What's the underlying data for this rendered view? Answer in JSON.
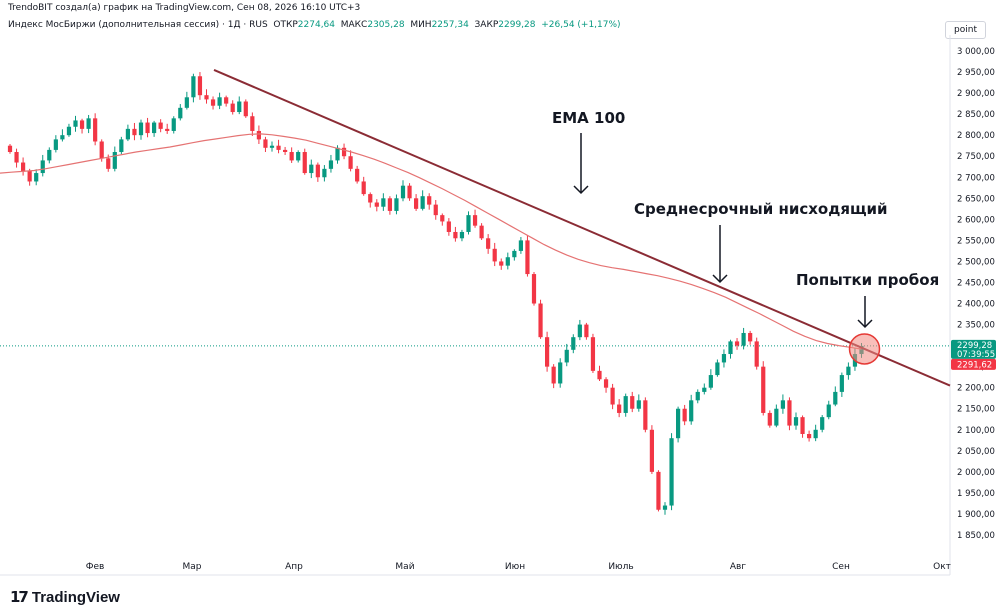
{
  "header": {
    "created_by": "TrendoBIT создал(а) график на TradingView.com, Сен 08, 2026 16:10 UTC+3",
    "symbol": "Индекс МосБиржи (дополнительная сессия) · 1Д · RUS",
    "open_label": "ОТКР",
    "open_value": "2274,64",
    "high_label": "МАКС",
    "high_value": "2305,28",
    "low_label": "МИН",
    "low_value": "2257,34",
    "close_label": "ЗАКР",
    "close_value": "2299,28",
    "change": "+26,54 (+1,17%)"
  },
  "scale_unit_button": "point",
  "price_badges": {
    "last_price": "2299,28",
    "countdown": "07:39:55",
    "ema_value": "2291,62"
  },
  "brand": {
    "logo": "17",
    "name": "TradingView"
  },
  "colors": {
    "up": "#089981",
    "down": "#f23645",
    "ema": "#e57373",
    "trendline": "#8b2c35",
    "highlight": "#f28b82"
  },
  "chart_data": {
    "type": "candlestick",
    "y_axis_ticks": [
      1850,
      1900,
      1950,
      2000,
      2050,
      2100,
      2150,
      2200,
      2250,
      2300,
      2350,
      2400,
      2450,
      2500,
      2550,
      2600,
      2650,
      2700,
      2750,
      2800,
      2850,
      2900,
      2950,
      3000
    ],
    "y_tick_labels": [
      "1 850,00",
      "1 900,00",
      "1 950,00",
      "2 000,00",
      "2 050,00",
      "2 100,00",
      "2 150,00",
      "2 200,00",
      "2 250,00",
      "2 300,00",
      "2 350,00",
      "2 400,00",
      "2 450,00",
      "2 500,00",
      "2 550,00",
      "2 600,00",
      "2 650,00",
      "2 700,00",
      "2 750,00",
      "2 800,00",
      "2 850,00",
      "2 900,00",
      "2 950,00",
      "3 000,00"
    ],
    "ylim": [
      1805,
      3040
    ],
    "x_month_labels": [
      "Фев",
      "Мар",
      "Апр",
      "Май",
      "Июн",
      "Июль",
      "Авг",
      "Сен",
      "Окт"
    ],
    "close": [
      2760,
      2735,
      2715,
      2690,
      2710,
      2740,
      2765,
      2790,
      2800,
      2820,
      2835,
      2815,
      2840,
      2785,
      2745,
      2720,
      2760,
      2790,
      2815,
      2800,
      2830,
      2805,
      2830,
      2815,
      2810,
      2840,
      2865,
      2890,
      2940,
      2895,
      2885,
      2870,
      2890,
      2875,
      2855,
      2880,
      2845,
      2810,
      2790,
      2770,
      2775,
      2765,
      2760,
      2740,
      2760,
      2710,
      2730,
      2700,
      2720,
      2740,
      2770,
      2750,
      2720,
      2690,
      2660,
      2640,
      2630,
      2650,
      2620,
      2650,
      2680,
      2650,
      2625,
      2655,
      2635,
      2610,
      2595,
      2570,
      2555,
      2570,
      2610,
      2585,
      2555,
      2530,
      2500,
      2490,
      2510,
      2525,
      2550,
      2470,
      2400,
      2320,
      2250,
      2210,
      2260,
      2290,
      2320,
      2350,
      2320,
      2240,
      2220,
      2200,
      2160,
      2140,
      2180,
      2150,
      2170,
      2100,
      2000,
      1910,
      1920,
      2080,
      2150,
      2120,
      2170,
      2190,
      2200,
      2230,
      2260,
      2280,
      2310,
      2300,
      2330,
      2310,
      2250,
      2140,
      2110,
      2150,
      2170,
      2110,
      2130,
      2090,
      2080,
      2100,
      2130,
      2160,
      2190,
      2230,
      2250,
      2280,
      2299.28
    ],
    "ema_100": [
      2710,
      2712,
      2714,
      2716,
      2720,
      2725,
      2730,
      2735,
      2740,
      2745,
      2750,
      2755,
      2760,
      2764,
      2768,
      2772,
      2777,
      2782,
      2787,
      2791,
      2795,
      2799,
      2802,
      2803,
      2801,
      2797,
      2793,
      2788,
      2781,
      2774,
      2767,
      2760,
      2752,
      2743,
      2733,
      2722,
      2711,
      2699,
      2686,
      2673,
      2659,
      2645,
      2630,
      2615,
      2600,
      2585,
      2570,
      2555,
      2540,
      2527,
      2515,
      2505,
      2497,
      2490,
      2485,
      2481,
      2476,
      2471,
      2466,
      2460,
      2453,
      2445,
      2436,
      2426,
      2415,
      2402,
      2389,
      2376,
      2362,
      2348,
      2334,
      2322,
      2312,
      2305,
      2300,
      2296,
      2291.62
    ],
    "trendline": {
      "from": [
        "Мар",
        2955
      ],
      "to": [
        "Окт",
        2205
      ]
    },
    "annotations": [
      {
        "text": "EMA 100"
      },
      {
        "text": "Среднесрочный нисходящий"
      },
      {
        "text": "Попытки пробоя"
      }
    ]
  }
}
